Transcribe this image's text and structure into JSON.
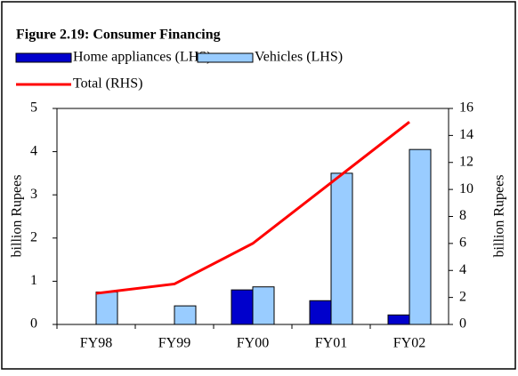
{
  "chart_data": {
    "type": "bar",
    "title": "Figure 2.19: Consumer Financing",
    "categories": [
      "FY98",
      "FY99",
      "FY00",
      "FY01",
      "FY02"
    ],
    "series": [
      {
        "name": "Home appliances (LHS)",
        "color": "#0000cc",
        "values": [
          0,
          0,
          0.8,
          0.55,
          0.22
        ]
      },
      {
        "name": "Vehicles (LHS)",
        "color": "#99ccff",
        "values": [
          0.75,
          0.43,
          0.87,
          3.5,
          4.05
        ]
      },
      {
        "name": "Total (RHS)",
        "type": "line",
        "axis": "y2",
        "color": "#ff0000",
        "values": [
          2.3,
          3.0,
          6.0,
          10.5,
          15.0
        ]
      }
    ],
    "ylabel": "billion Rupees",
    "y2label": "billion Rupees",
    "ylim": [
      0,
      5
    ],
    "yticks": [
      0,
      1,
      2,
      3,
      4,
      5
    ],
    "y2lim": [
      0,
      16
    ],
    "y2ticks": [
      0,
      2,
      4,
      6,
      8,
      10,
      12,
      14,
      16
    ]
  }
}
